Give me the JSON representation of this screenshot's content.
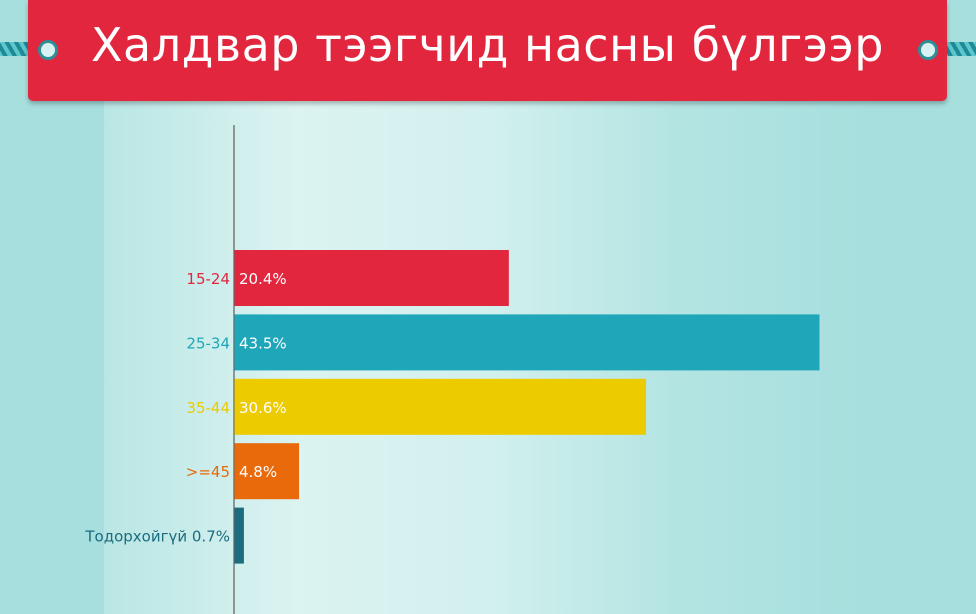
{
  "chart_data": {
    "type": "bar",
    "orientation": "horizontal",
    "title": "Халдвар тээгчид насны бүлгээр",
    "categories": [
      "15-24",
      "25-34",
      "35-44",
      ">=45",
      "Тодорхойгүй"
    ],
    "values": [
      20.4,
      43.5,
      30.6,
      4.8,
      0.7
    ],
    "value_labels": [
      "20.4%",
      "43.5%",
      "30.6%",
      "4.8%",
      "0.7%"
    ],
    "colors": [
      "#e2263e",
      "#1fa7b9",
      "#eccb00",
      "#e96a0a",
      "#1c6c80"
    ],
    "category_label_colors": [
      "#e2263e",
      "#1fa7b9",
      "#eccb00",
      "#e96a0a",
      "#1c6c80"
    ],
    "xlim": [
      0,
      43.5
    ],
    "grid": false,
    "legend": "none"
  }
}
